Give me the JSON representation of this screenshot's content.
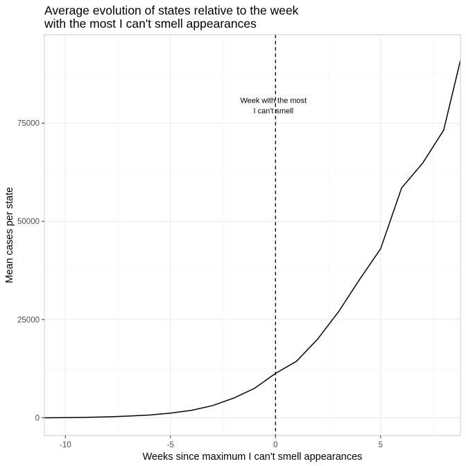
{
  "chart_data": {
    "type": "line",
    "title_lines": [
      "Average evolution of states relative to the week",
      "with the most I can't smell appearances"
    ],
    "xlabel": "Weeks since maximum I can't smell appearances",
    "ylabel": "Mean cases per state",
    "xlim": [
      -11,
      8.8
    ],
    "ylim": [
      -4500,
      97500
    ],
    "x_ticks": [
      -10,
      -5,
      0,
      5
    ],
    "x_tick_labels": [
      "-10",
      "-5",
      "0",
      "5"
    ],
    "y_ticks": [
      0,
      25000,
      50000,
      75000
    ],
    "y_tick_labels": [
      "0",
      "25000",
      "50000",
      "75000"
    ],
    "grid": true,
    "series": [
      {
        "x": [
          -11,
          -10,
          -9,
          -8,
          -7,
          -6,
          -5,
          -4,
          -3,
          -2,
          -1,
          0,
          1,
          2,
          3,
          4,
          5,
          6,
          7,
          8,
          8.8
        ],
        "values": [
          0,
          50,
          120,
          250,
          450,
          700,
          1200,
          1900,
          3100,
          5000,
          7500,
          11300,
          14400,
          20000,
          27000,
          35200,
          43000,
          58500,
          64800,
          73200,
          91000
        ]
      }
    ],
    "reference_line": {
      "x": 0,
      "style": "dashed"
    },
    "annotation": {
      "lines": [
        "Week with the most",
        "I can't smell"
      ],
      "x": 0,
      "y_lines": [
        80800,
        78200
      ]
    }
  }
}
